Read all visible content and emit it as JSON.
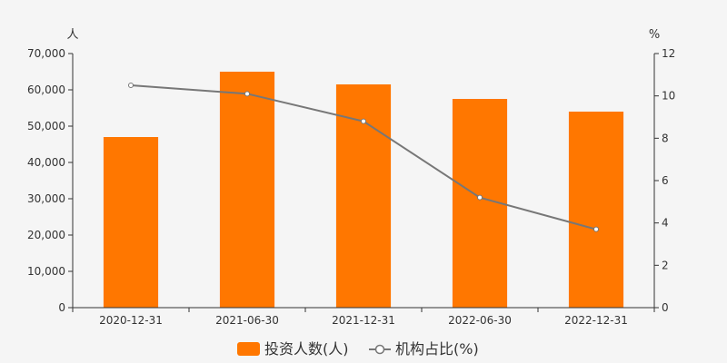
{
  "chart_data": {
    "type": "bar",
    "categories": [
      "2020-12-31",
      "2021-06-30",
      "2021-12-31",
      "2022-06-30",
      "2022-12-31"
    ],
    "series": [
      {
        "name": "投资人数(人)",
        "type": "bar",
        "axis": "left",
        "color": "#ff7700",
        "values": [
          47000,
          65000,
          61500,
          57500,
          54000
        ]
      },
      {
        "name": "机构占比(%)",
        "type": "line",
        "axis": "right",
        "color": "#777777",
        "values": [
          10.5,
          10.1,
          8.8,
          5.2,
          3.7
        ]
      }
    ],
    "y_left": {
      "unit": "人",
      "ylim": [
        0,
        70000
      ],
      "ticks": [
        "0",
        "10,000",
        "20,000",
        "30,000",
        "40,000",
        "50,000",
        "60,000",
        "70,000"
      ]
    },
    "y_right": {
      "unit": "%",
      "ylim": [
        0,
        12
      ],
      "ticks": [
        "0",
        "2",
        "4",
        "6",
        "8",
        "10",
        "12"
      ]
    },
    "grid": false,
    "legend_position": "bottom-center"
  }
}
